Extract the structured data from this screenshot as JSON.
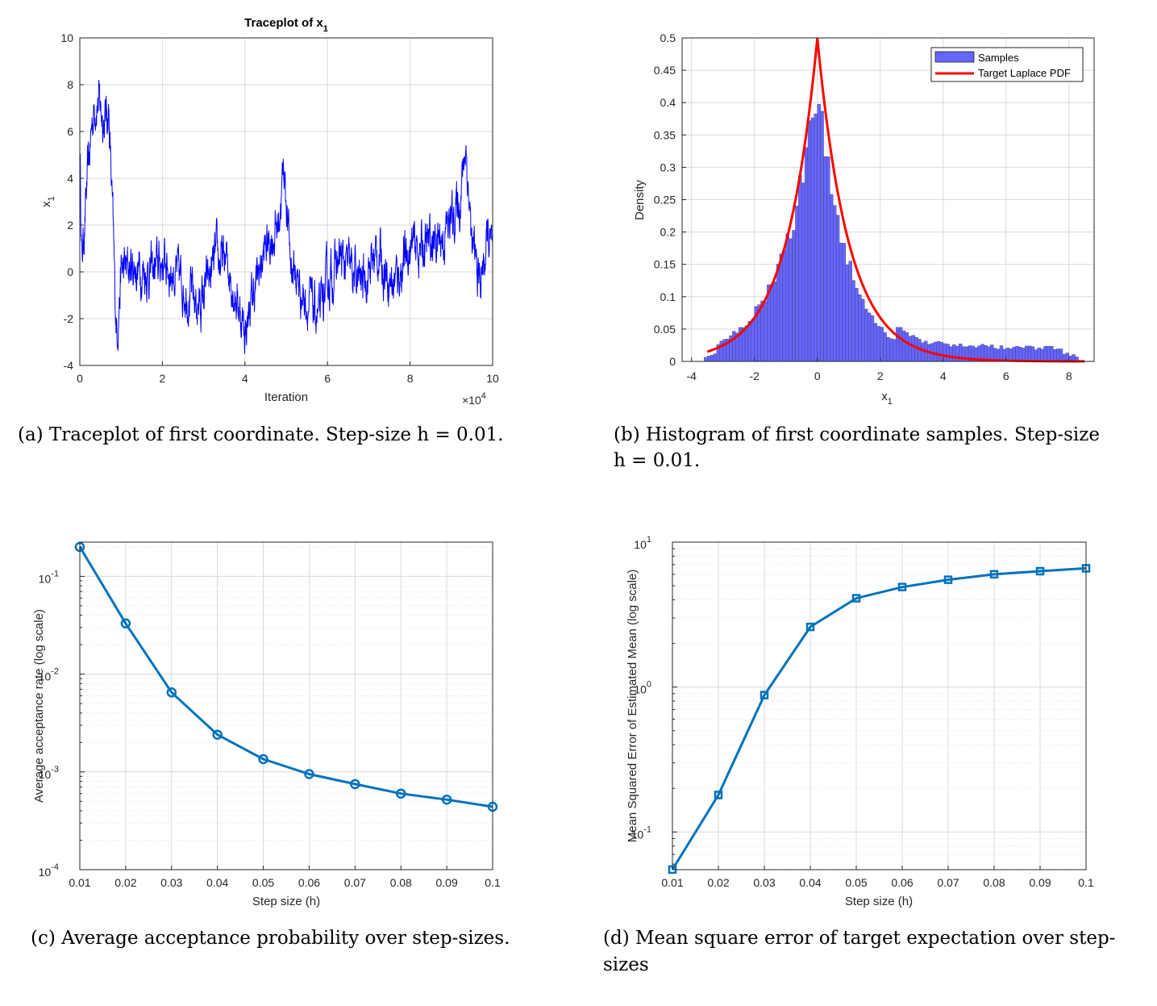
{
  "panel_a": {
    "caption": "(a) Traceplot of first coordinate. Step-size h = 0.01.",
    "chart_data": {
      "type": "line",
      "title": "Traceplot of x1",
      "title_main": "Traceplot of x",
      "title_sub": "1",
      "xlabel": "Iteration",
      "ylabel_main": "x",
      "ylabel_sub": "1",
      "x_exponent_base": "×10",
      "x_exponent_power": "4",
      "xlim": [
        0,
        10
      ],
      "ylim": [
        -4,
        10
      ],
      "xticks": [
        0,
        2,
        4,
        6,
        8,
        10
      ],
      "yticks": [
        -4,
        -2,
        0,
        2,
        4,
        6,
        8,
        10
      ],
      "color": "#0000ff",
      "anchors_x": [
        0,
        0.05,
        0.15,
        0.3,
        0.4,
        0.5,
        0.6,
        0.7,
        0.8,
        0.85,
        0.9,
        1.0,
        1.3,
        1.8,
        2.0,
        2.4,
        2.9,
        3.3,
        3.6,
        4.0,
        4.2,
        4.5,
        4.8,
        4.95,
        5.1,
        5.4,
        5.8,
        6.0,
        6.3,
        6.8,
        7.2,
        7.6,
        8.0,
        8.3,
        8.8,
        9.2,
        9.35,
        9.5,
        9.7,
        9.9,
        10.0
      ],
      "anchors_y": [
        5.5,
        0.5,
        3.0,
        6.5,
        7.5,
        7.0,
        6.5,
        7.0,
        2.0,
        -1.0,
        -2.5,
        0.0,
        0.2,
        0.0,
        0.5,
        -0.3,
        -1.5,
        0.5,
        0.3,
        -2.5,
        -1.0,
        1.0,
        2.0,
        4.5,
        0.5,
        -1.0,
        -2.0,
        -0.5,
        0.5,
        -0.5,
        0.8,
        -0.5,
        1.0,
        1.0,
        1.5,
        3.0,
        5.5,
        1.0,
        -0.5,
        1.5,
        0.5
      ]
    }
  },
  "panel_b": {
    "caption_line1": "(b) Histogram of first coordinate samples. Step-size",
    "caption_line2": "h = 0.01.",
    "chart_data": {
      "type": "bar",
      "xlabel_main": "x",
      "xlabel_sub": "1",
      "ylabel": "Density",
      "xlim": [
        -4.3,
        8.8
      ],
      "ylim": [
        0,
        0.5
      ],
      "xticks": [
        -4,
        -2,
        0,
        2,
        4,
        6,
        8
      ],
      "yticks": [
        0,
        0.05,
        0.1,
        0.15,
        0.2,
        0.25,
        0.3,
        0.35,
        0.4,
        0.45,
        0.5
      ],
      "bin_start": -3.6,
      "bin_width": 0.1,
      "bin_count": 119,
      "histogram_color": "#6666ff",
      "pdf_color": "#ff0000",
      "pdf": "0.5*exp(-|x|)",
      "pdf_range": [
        -3.5,
        8.5
      ],
      "legend": [
        "Samples",
        "Target Laplace PDF"
      ],
      "legend_position": "top-right"
    }
  },
  "panel_c": {
    "caption": "(c) Average acceptance probability over step-sizes.",
    "chart_data": {
      "type": "line",
      "xlabel": "Step size (h)",
      "ylabel": "Average acceptance rate (log scale)",
      "yscale": "log",
      "x": [
        0.01,
        0.02,
        0.03,
        0.04,
        0.05,
        0.06,
        0.07,
        0.08,
        0.09,
        0.1
      ],
      "y": [
        0.2,
        0.033,
        0.0065,
        0.0024,
        0.00135,
        0.00095,
        0.00075,
        0.0006,
        0.00052,
        0.00044
      ],
      "xlim": [
        0.01,
        0.1
      ],
      "ylim_exp": [
        -4,
        -0.65
      ],
      "xtick_labels": [
        "0.01",
        "0.02",
        "0.03",
        "0.04",
        "0.05",
        "0.06",
        "0.07",
        "0.08",
        "0.09",
        "0.1"
      ],
      "ytick_exps": [
        "-4",
        "-3",
        "-2",
        "-1"
      ],
      "ytick_base": "10",
      "marker": "circle",
      "color": "#0072bd"
    }
  },
  "panel_d": {
    "caption_line1": "(d) Mean square error of target expectation over step-",
    "caption_line2": "sizes",
    "chart_data": {
      "type": "line",
      "xlabel": "Step size (h)",
      "ylabel": "Mean Squared Error of Estimated Mean (log scale)",
      "yscale": "log",
      "x": [
        0.01,
        0.02,
        0.03,
        0.04,
        0.05,
        0.06,
        0.07,
        0.08,
        0.09,
        0.1
      ],
      "y": [
        0.055,
        0.18,
        0.88,
        2.6,
        4.1,
        4.9,
        5.5,
        6.0,
        6.3,
        6.6
      ],
      "xlim": [
        0.01,
        0.1
      ],
      "ylim_exp": [
        -1.26,
        1.0
      ],
      "xtick_labels": [
        "0.01",
        "0.02",
        "0.03",
        "0.04",
        "0.05",
        "0.06",
        "0.07",
        "0.08",
        "0.09",
        "0.1"
      ],
      "ytick_exps": [
        "-1",
        "0",
        "1"
      ],
      "ytick_base": "10",
      "marker": "square",
      "color": "#0072bd"
    }
  }
}
